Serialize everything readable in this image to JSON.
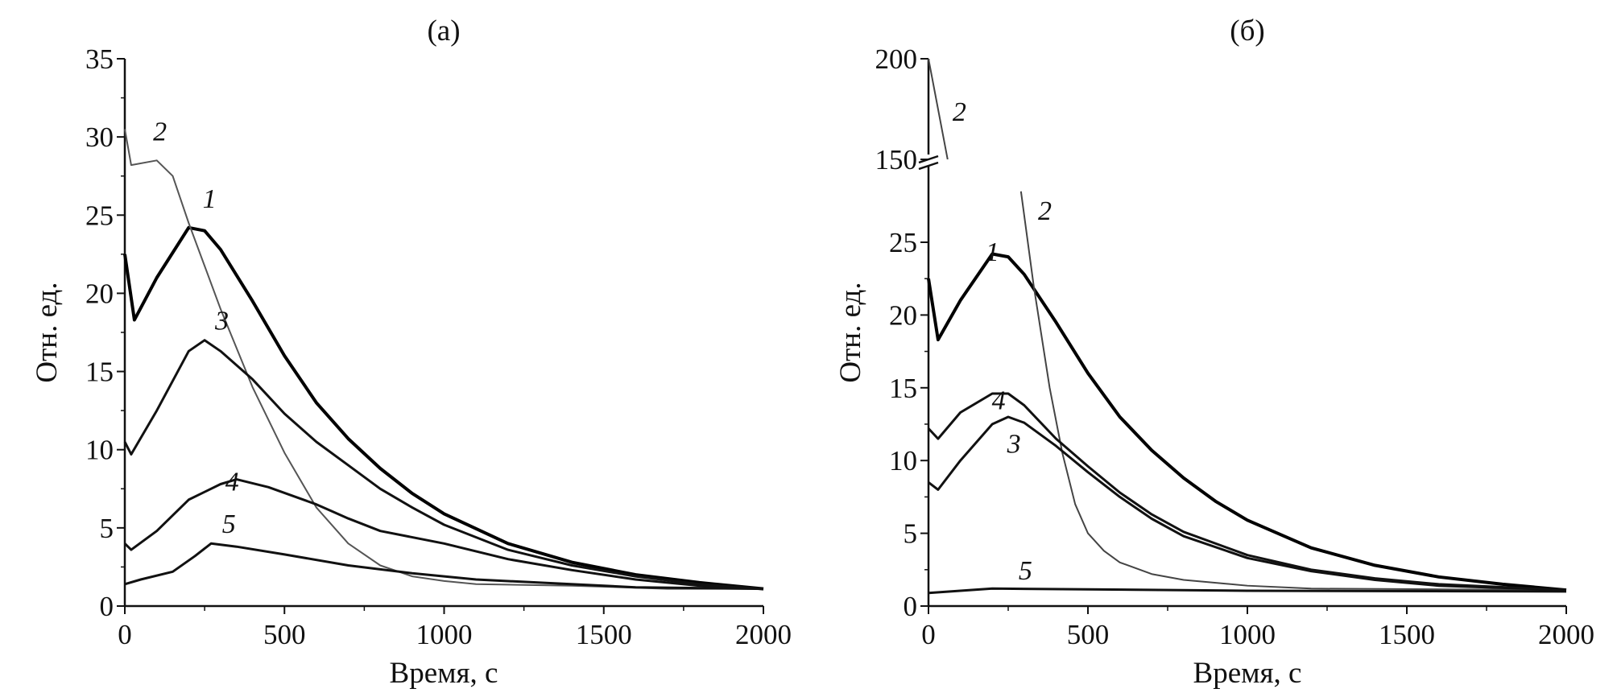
{
  "chart_data": [
    {
      "type": "line",
      "title": "(a)",
      "xlabel": "Время, с",
      "ylabel": "Отн. ед.",
      "xlim": [
        0,
        2000
      ],
      "ylim": [
        0,
        35
      ],
      "xticks": [
        "0",
        "500",
        "1000",
        "1500",
        "2000"
      ],
      "yticks": [
        "0",
        "5",
        "10",
        "15",
        "20",
        "25",
        "30",
        "35"
      ],
      "grid": false,
      "series": [
        {
          "name": "1",
          "color": "#000000",
          "width": 4,
          "x": [
            0,
            30,
            100,
            200,
            250,
            300,
            400,
            500,
            600,
            700,
            800,
            900,
            1000,
            1200,
            1400,
            1600,
            1800,
            2000
          ],
          "y": [
            22.5,
            18.3,
            21,
            24.2,
            24,
            22.8,
            19.5,
            16,
            13,
            10.7,
            8.8,
            7.2,
            5.9,
            4,
            2.8,
            2,
            1.5,
            1.1
          ],
          "label_at": [
            265,
            26.1
          ]
        },
        {
          "name": "2",
          "color": "#555555",
          "width": 2,
          "x": [
            0,
            20,
            100,
            150,
            200,
            300,
            400,
            500,
            600,
            700,
            800,
            900,
            1000,
            1100,
            1400,
            1700,
            2000
          ],
          "y": [
            30.5,
            28.2,
            28.5,
            27.5,
            24.5,
            19,
            14,
            9.8,
            6.3,
            4,
            2.6,
            1.9,
            1.6,
            1.4,
            1.3,
            1.1,
            1.1
          ],
          "label_at": [
            110,
            30.4
          ]
        },
        {
          "name": "3",
          "color": "#111111",
          "width": 3,
          "x": [
            0,
            20,
            100,
            200,
            250,
            300,
            400,
            500,
            600,
            700,
            800,
            900,
            1000,
            1200,
            1400,
            1600,
            1800,
            2000
          ],
          "y": [
            10.5,
            9.7,
            12.5,
            16.3,
            17,
            16.3,
            14.5,
            12.3,
            10.5,
            9,
            7.5,
            6.3,
            5.2,
            3.6,
            2.6,
            1.9,
            1.4,
            1.1
          ],
          "label_at": [
            304,
            18.3
          ]
        },
        {
          "name": "4",
          "color": "#111111",
          "width": 3,
          "x": [
            0,
            20,
            100,
            200,
            300,
            350,
            450,
            600,
            700,
            800,
            1000,
            1200,
            1400,
            1600,
            1800,
            2000
          ],
          "y": [
            4,
            3.6,
            4.8,
            6.8,
            7.8,
            8.1,
            7.6,
            6.5,
            5.6,
            4.8,
            4,
            3,
            2.3,
            1.7,
            1.3,
            1.1
          ],
          "label_at": [
            336,
            8
          ]
        },
        {
          "name": "5",
          "color": "#111111",
          "width": 3,
          "x": [
            0,
            50,
            150,
            220,
            270,
            350,
            500,
            700,
            900,
            1100,
            1300,
            1600,
            2000
          ],
          "y": [
            1.4,
            1.7,
            2.2,
            3.2,
            4,
            3.8,
            3.3,
            2.6,
            2.1,
            1.7,
            1.5,
            1.2,
            1.1
          ],
          "label_at": [
            326,
            5.3
          ]
        }
      ]
    },
    {
      "type": "line",
      "title": "(б)",
      "xlabel": "Время, с",
      "ylabel": "Отн. ед.",
      "xlim": [
        0,
        2000
      ],
      "ylim": [
        0,
        200
      ],
      "y_break": [
        30,
        150
      ],
      "xticks": [
        "0",
        "500",
        "1000",
        "1500",
        "2000"
      ],
      "yticks": [
        "0",
        "5",
        "10",
        "15",
        "20",
        "25",
        "150",
        "200"
      ],
      "grid": false,
      "series": [
        {
          "name": "1",
          "color": "#000000",
          "width": 4,
          "x": [
            0,
            30,
            100,
            200,
            250,
            300,
            400,
            500,
            600,
            700,
            800,
            900,
            1000,
            1200,
            1400,
            1600,
            1800,
            2000
          ],
          "y": [
            22.5,
            18.3,
            21,
            24.2,
            24,
            22.8,
            19.5,
            16,
            13,
            10.7,
            8.8,
            7.2,
            5.9,
            4,
            2.8,
            2,
            1.5,
            1.1
          ],
          "label_at": [
            200,
            24.4
          ]
        },
        {
          "name": "2",
          "color": "#444444",
          "width": 2,
          "x": [
            0,
            60,
            290,
            330,
            380,
            420,
            460,
            500,
            550,
            600,
            700,
            800,
            1000,
            1200,
            2000
          ],
          "y": [
            200,
            150,
            28.5,
            22,
            15,
            10.5,
            7,
            5,
            3.8,
            3,
            2.2,
            1.8,
            1.4,
            1.2,
            1.1
          ],
          "label_at": [
            365,
            27.2
          ],
          "label_upper_at": [
            97,
            174
          ]
        },
        {
          "name": "3",
          "color": "#111111",
          "width": 3,
          "x": [
            0,
            30,
            100,
            200,
            250,
            300,
            400,
            500,
            600,
            700,
            800,
            1000,
            1200,
            1400,
            1600,
            2000
          ],
          "y": [
            8.5,
            8,
            10,
            12.5,
            13,
            12.6,
            11,
            9.2,
            7.5,
            6,
            4.8,
            3.3,
            2.4,
            1.8,
            1.4,
            1.1
          ],
          "label_at": [
            268,
            11.2
          ]
        },
        {
          "name": "4",
          "color": "#111111",
          "width": 3,
          "x": [
            0,
            30,
            100,
            200,
            250,
            300,
            400,
            500,
            600,
            700,
            800,
            1000,
            1200,
            1400,
            1600,
            2000
          ],
          "y": [
            12.2,
            11.5,
            13.3,
            14.6,
            14.6,
            13.8,
            11.5,
            9.6,
            7.8,
            6.3,
            5.1,
            3.5,
            2.5,
            1.9,
            1.5,
            1.1
          ],
          "label_at": [
            220,
            14.2
          ]
        },
        {
          "name": "5",
          "color": "#111111",
          "width": 3,
          "x": [
            0,
            200,
            500,
            1000,
            2000
          ],
          "y": [
            0.9,
            1.2,
            1.15,
            1.05,
            1
          ],
          "label_at": [
            304,
            2.5
          ]
        }
      ]
    }
  ]
}
